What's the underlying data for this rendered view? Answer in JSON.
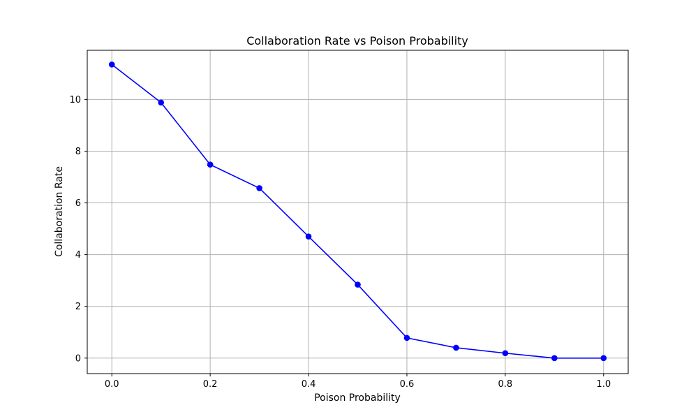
{
  "chart_data": {
    "type": "line",
    "title": "Collaboration Rate vs Poison Probability",
    "xlabel": "Poison Probability",
    "ylabel": "Collaboration Rate",
    "x": [
      0.0,
      0.1,
      0.2,
      0.3,
      0.4,
      0.5,
      0.6,
      0.7,
      0.8,
      0.9,
      1.0
    ],
    "series": [
      {
        "values": [
          11.35,
          9.88,
          7.48,
          6.57,
          4.7,
          2.84,
          0.78,
          0.4,
          0.19,
          0.0,
          0.0
        ],
        "color": "#0000ff",
        "marker": "circle"
      }
    ],
    "xlim": [
      -0.05,
      1.05
    ],
    "ylim": [
      -0.6,
      11.9
    ],
    "xticks": [
      "0.0",
      "0.2",
      "0.4",
      "0.6",
      "0.8",
      "1.0"
    ],
    "yticks": [
      "0",
      "2",
      "4",
      "6",
      "8",
      "10"
    ],
    "grid": true,
    "colors": {
      "grid": "#b0b0b0",
      "axes": "#000000"
    }
  }
}
